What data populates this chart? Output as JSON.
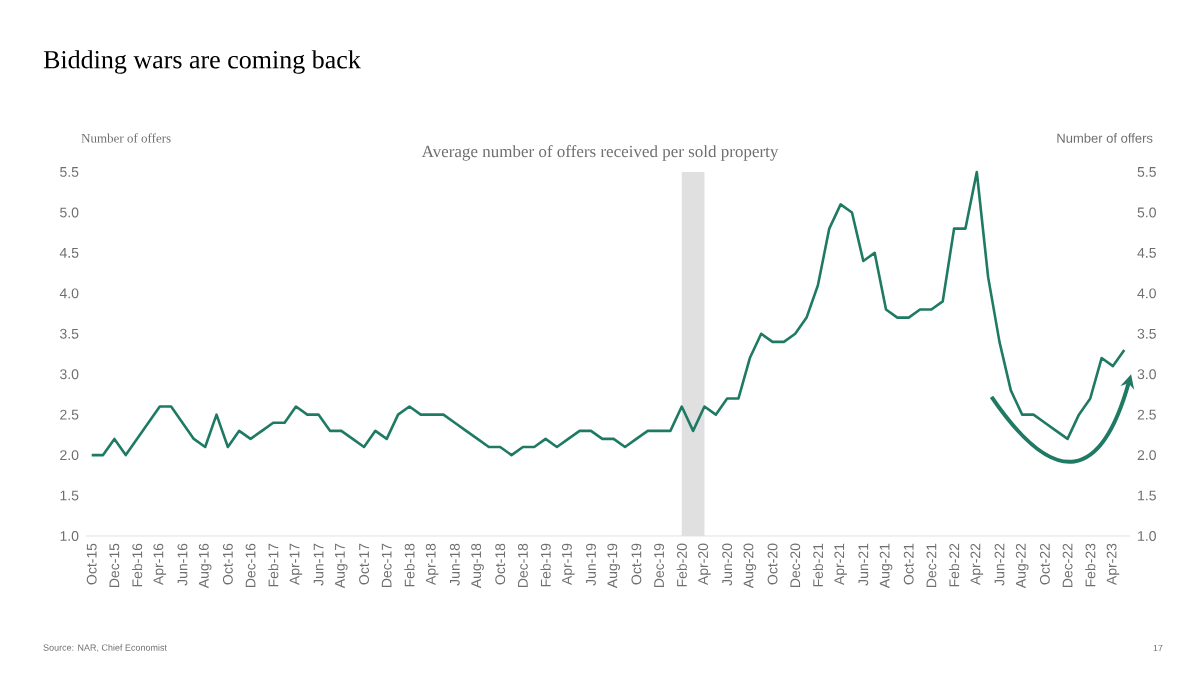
{
  "chart_data": {
    "type": "line",
    "title": "Bidding wars are coming back",
    "subtitle": "Average number of offers received per sold property",
    "ylabel": "Number of offers",
    "y2label": "Number of offers",
    "annotations": [
      "Source: NAR, Chief Economist",
      "17"
    ],
    "categories": [
      "Oct-15",
      null,
      "Dec-15",
      null,
      "Feb-16",
      null,
      "Apr-16",
      null,
      "Jun-16",
      null,
      "Aug-16",
      null,
      "Oct-16",
      null,
      "Dec-16",
      null,
      "Feb-17",
      null,
      "Apr-17",
      null,
      "Jun-17",
      null,
      "Aug-17",
      null,
      "Oct-17",
      null,
      "Dec-17",
      null,
      "Feb-18",
      null,
      "Apr-18",
      null,
      "Jun-18",
      null,
      "Aug-18",
      null,
      "Oct-18",
      null,
      "Dec-18",
      null,
      "Feb-19",
      null,
      "Apr-19",
      null,
      "Jun-19",
      null,
      "Aug-19",
      null,
      "Oct-19",
      null,
      "Dec-19",
      null,
      "Feb-20",
      null,
      "Apr-20",
      null,
      "Jun-20",
      null,
      "Aug-20",
      null,
      "Oct-20",
      null,
      "Dec-20",
      null,
      "Feb-21",
      null,
      "Apr-21",
      null,
      "Jun-21",
      null,
      "Aug-21",
      null,
      "Oct-21",
      null,
      "Dec-21",
      null,
      "Feb-22",
      null,
      "Apr-22",
      null,
      "Jun-22",
      null,
      "Aug-22",
      null,
      "Oct-22",
      null,
      "Dec-22",
      null,
      "Feb-23",
      null,
      "Apr-23",
      null
    ],
    "series": [
      {
        "color": "#1f7a63",
        "values": [
          2.0,
          2.0,
          2.2,
          2.0,
          2.2,
          2.4,
          2.6,
          2.6,
          2.4,
          2.2,
          2.1,
          2.5,
          2.1,
          2.3,
          2.2,
          2.3,
          2.4,
          2.4,
          2.6,
          2.5,
          2.5,
          2.3,
          2.3,
          2.2,
          2.1,
          2.3,
          2.2,
          2.5,
          2.6,
          2.5,
          2.5,
          2.5,
          2.4,
          2.3,
          2.2,
          2.1,
          2.1,
          2.0,
          2.1,
          2.1,
          2.2,
          2.1,
          2.2,
          2.3,
          2.3,
          2.2,
          2.2,
          2.1,
          2.2,
          2.3,
          2.3,
          2.3,
          2.6,
          2.3,
          2.6,
          2.5,
          2.7,
          2.7,
          3.2,
          3.5,
          3.4,
          3.4,
          3.5,
          3.7,
          4.1,
          4.8,
          5.1,
          5.0,
          4.4,
          4.5,
          3.8,
          3.7,
          3.7,
          3.8,
          3.8,
          3.9,
          4.8,
          4.8,
          5.5,
          4.2,
          3.4,
          2.8,
          2.5,
          2.5,
          2.4,
          2.3,
          2.2,
          2.5,
          2.7,
          3.2,
          3.1,
          3.3
        ]
      }
    ],
    "ylim": [
      1.0,
      5.5
    ],
    "yticks": [
      {
        "value": 1.0,
        "label": "1.0"
      },
      {
        "value": 1.5,
        "label": "1.5"
      },
      {
        "value": 2.0,
        "label": "2.0"
      },
      {
        "value": 2.5,
        "label": "2.5"
      },
      {
        "value": 3.0,
        "label": "3.0"
      },
      {
        "value": 3.5,
        "label": "3.5"
      },
      {
        "value": 4.0,
        "label": "4.0"
      },
      {
        "value": 4.5,
        "label": "4.5"
      },
      {
        "value": 5.0,
        "label": "5.0"
      },
      {
        "value": 5.5,
        "label": "5.5"
      }
    ],
    "y2lim": [
      1.0,
      5.5
    ],
    "y2ticks": [
      {
        "value": 1.0,
        "label": "1.0"
      },
      {
        "value": 1.5,
        "label": "1.5"
      },
      {
        "value": 2.0,
        "label": "2.0"
      },
      {
        "value": 2.5,
        "label": "2.5"
      },
      {
        "value": 3.0,
        "label": "3.0"
      },
      {
        "value": 3.5,
        "label": "3.5"
      },
      {
        "value": 4.0,
        "label": "4.0"
      },
      {
        "value": 4.5,
        "label": "4.5"
      },
      {
        "value": 5.0,
        "label": "5.0"
      },
      {
        "value": 5.5,
        "label": "5.5"
      }
    ],
    "bands": [
      {
        "axis": "x",
        "from": "Feb-20",
        "to": "Apr-20",
        "color": "#e0e0e0"
      }
    ]
  }
}
